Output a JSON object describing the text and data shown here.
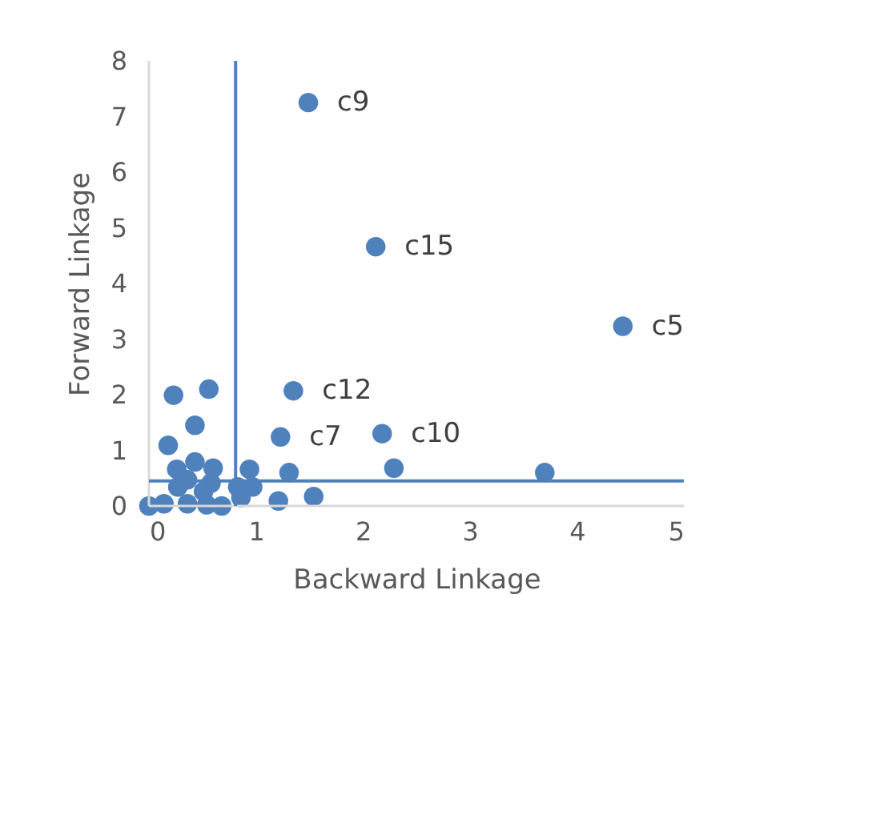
{
  "chart_data": {
    "type": "scatter",
    "xlabel": "Backward Linkage",
    "ylabel": "Forward Linkage",
    "x": [
      1.49,
      2.12,
      4.43,
      1.35,
      1.23,
      2.18,
      2.29,
      3.7,
      1.54,
      1.21,
      1.31,
      0.94,
      0.97,
      0.86,
      0.23,
      0.56,
      0.43,
      0.18,
      0.43,
      0.26,
      0.6,
      0.36,
      0.27,
      0.58,
      0.51,
      0,
      0.14,
      0.36,
      0.54,
      0.68,
      0.83
    ],
    "series": [
      {
        "color": "#4f81bd",
        "values": [
          7.25,
          4.66,
          3.23,
          2.07,
          1.24,
          1.3,
          0.68,
          0.6,
          0.17,
          0.09,
          0.6,
          0.66,
          0.34,
          0.15,
          1.99,
          2.1,
          1.45,
          1.09,
          0.79,
          0.66,
          0.68,
          0.47,
          0.34,
          0.41,
          0.26,
          0,
          0.04,
          0.04,
          0.02,
          0,
          0.34
        ]
      }
    ],
    "annotations": [
      {
        "text": "c9",
        "x": 1.49,
        "y": 7.25
      },
      {
        "text": "c15",
        "x": 2.12,
        "y": 4.66
      },
      {
        "text": "c5",
        "x": 4.43,
        "y": 3.23
      },
      {
        "text": "c12",
        "x": 1.35,
        "y": 2.07
      },
      {
        "text": "c7",
        "x": 1.23,
        "y": 1.24
      },
      {
        "text": "c10",
        "x": 2.18,
        "y": 1.3
      }
    ],
    "ref_lines": [
      {
        "axis": "x",
        "value": 0.81,
        "color": "#4f81bd"
      },
      {
        "axis": "y",
        "value": 0.45,
        "color": "#4f81bd"
      }
    ],
    "xlim": [
      0,
      5
    ],
    "ylim": [
      0,
      8
    ],
    "xticks": [
      0,
      1,
      2,
      3,
      4,
      5
    ],
    "yticks": [
      0,
      1,
      2,
      3,
      4,
      5,
      6,
      7,
      8
    ],
    "marker": "circle",
    "grid": false
  }
}
